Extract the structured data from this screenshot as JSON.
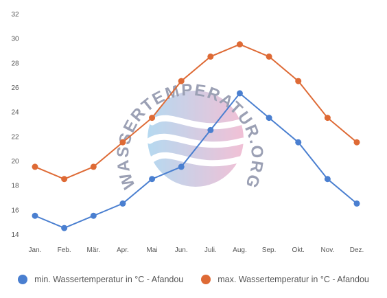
{
  "watermark": {
    "text": "WASSERTEMPERATUR.ORG",
    "colors": [
      "#a9d3ee",
      "#efb6cf"
    ]
  },
  "chart_data": {
    "type": "line",
    "categories": [
      "Jan.",
      "Feb.",
      "Mär.",
      "Apr.",
      "Mai",
      "Jun.",
      "Juli.",
      "Aug.",
      "Sep.",
      "Okt.",
      "Nov.",
      "Dez."
    ],
    "ylim": [
      14,
      32
    ],
    "yticks": [
      14,
      16,
      18,
      20,
      22,
      24,
      26,
      28,
      30,
      32
    ],
    "grid": false,
    "legend_position": "bottom",
    "series": [
      {
        "name": "min. Wassertemperatur in °C - Afandou",
        "color": "#4a7fd0",
        "values": [
          15.5,
          14.5,
          15.5,
          16.5,
          18.5,
          19.5,
          22.5,
          25.5,
          23.5,
          21.5,
          18.5,
          16.5
        ]
      },
      {
        "name": "max. Wassertemperatur in °C - Afandou",
        "color": "#de6a35",
        "values": [
          19.5,
          18.5,
          19.5,
          21.5,
          23.5,
          26.5,
          28.5,
          29.5,
          28.5,
          26.5,
          23.5,
          21.5
        ]
      }
    ]
  }
}
